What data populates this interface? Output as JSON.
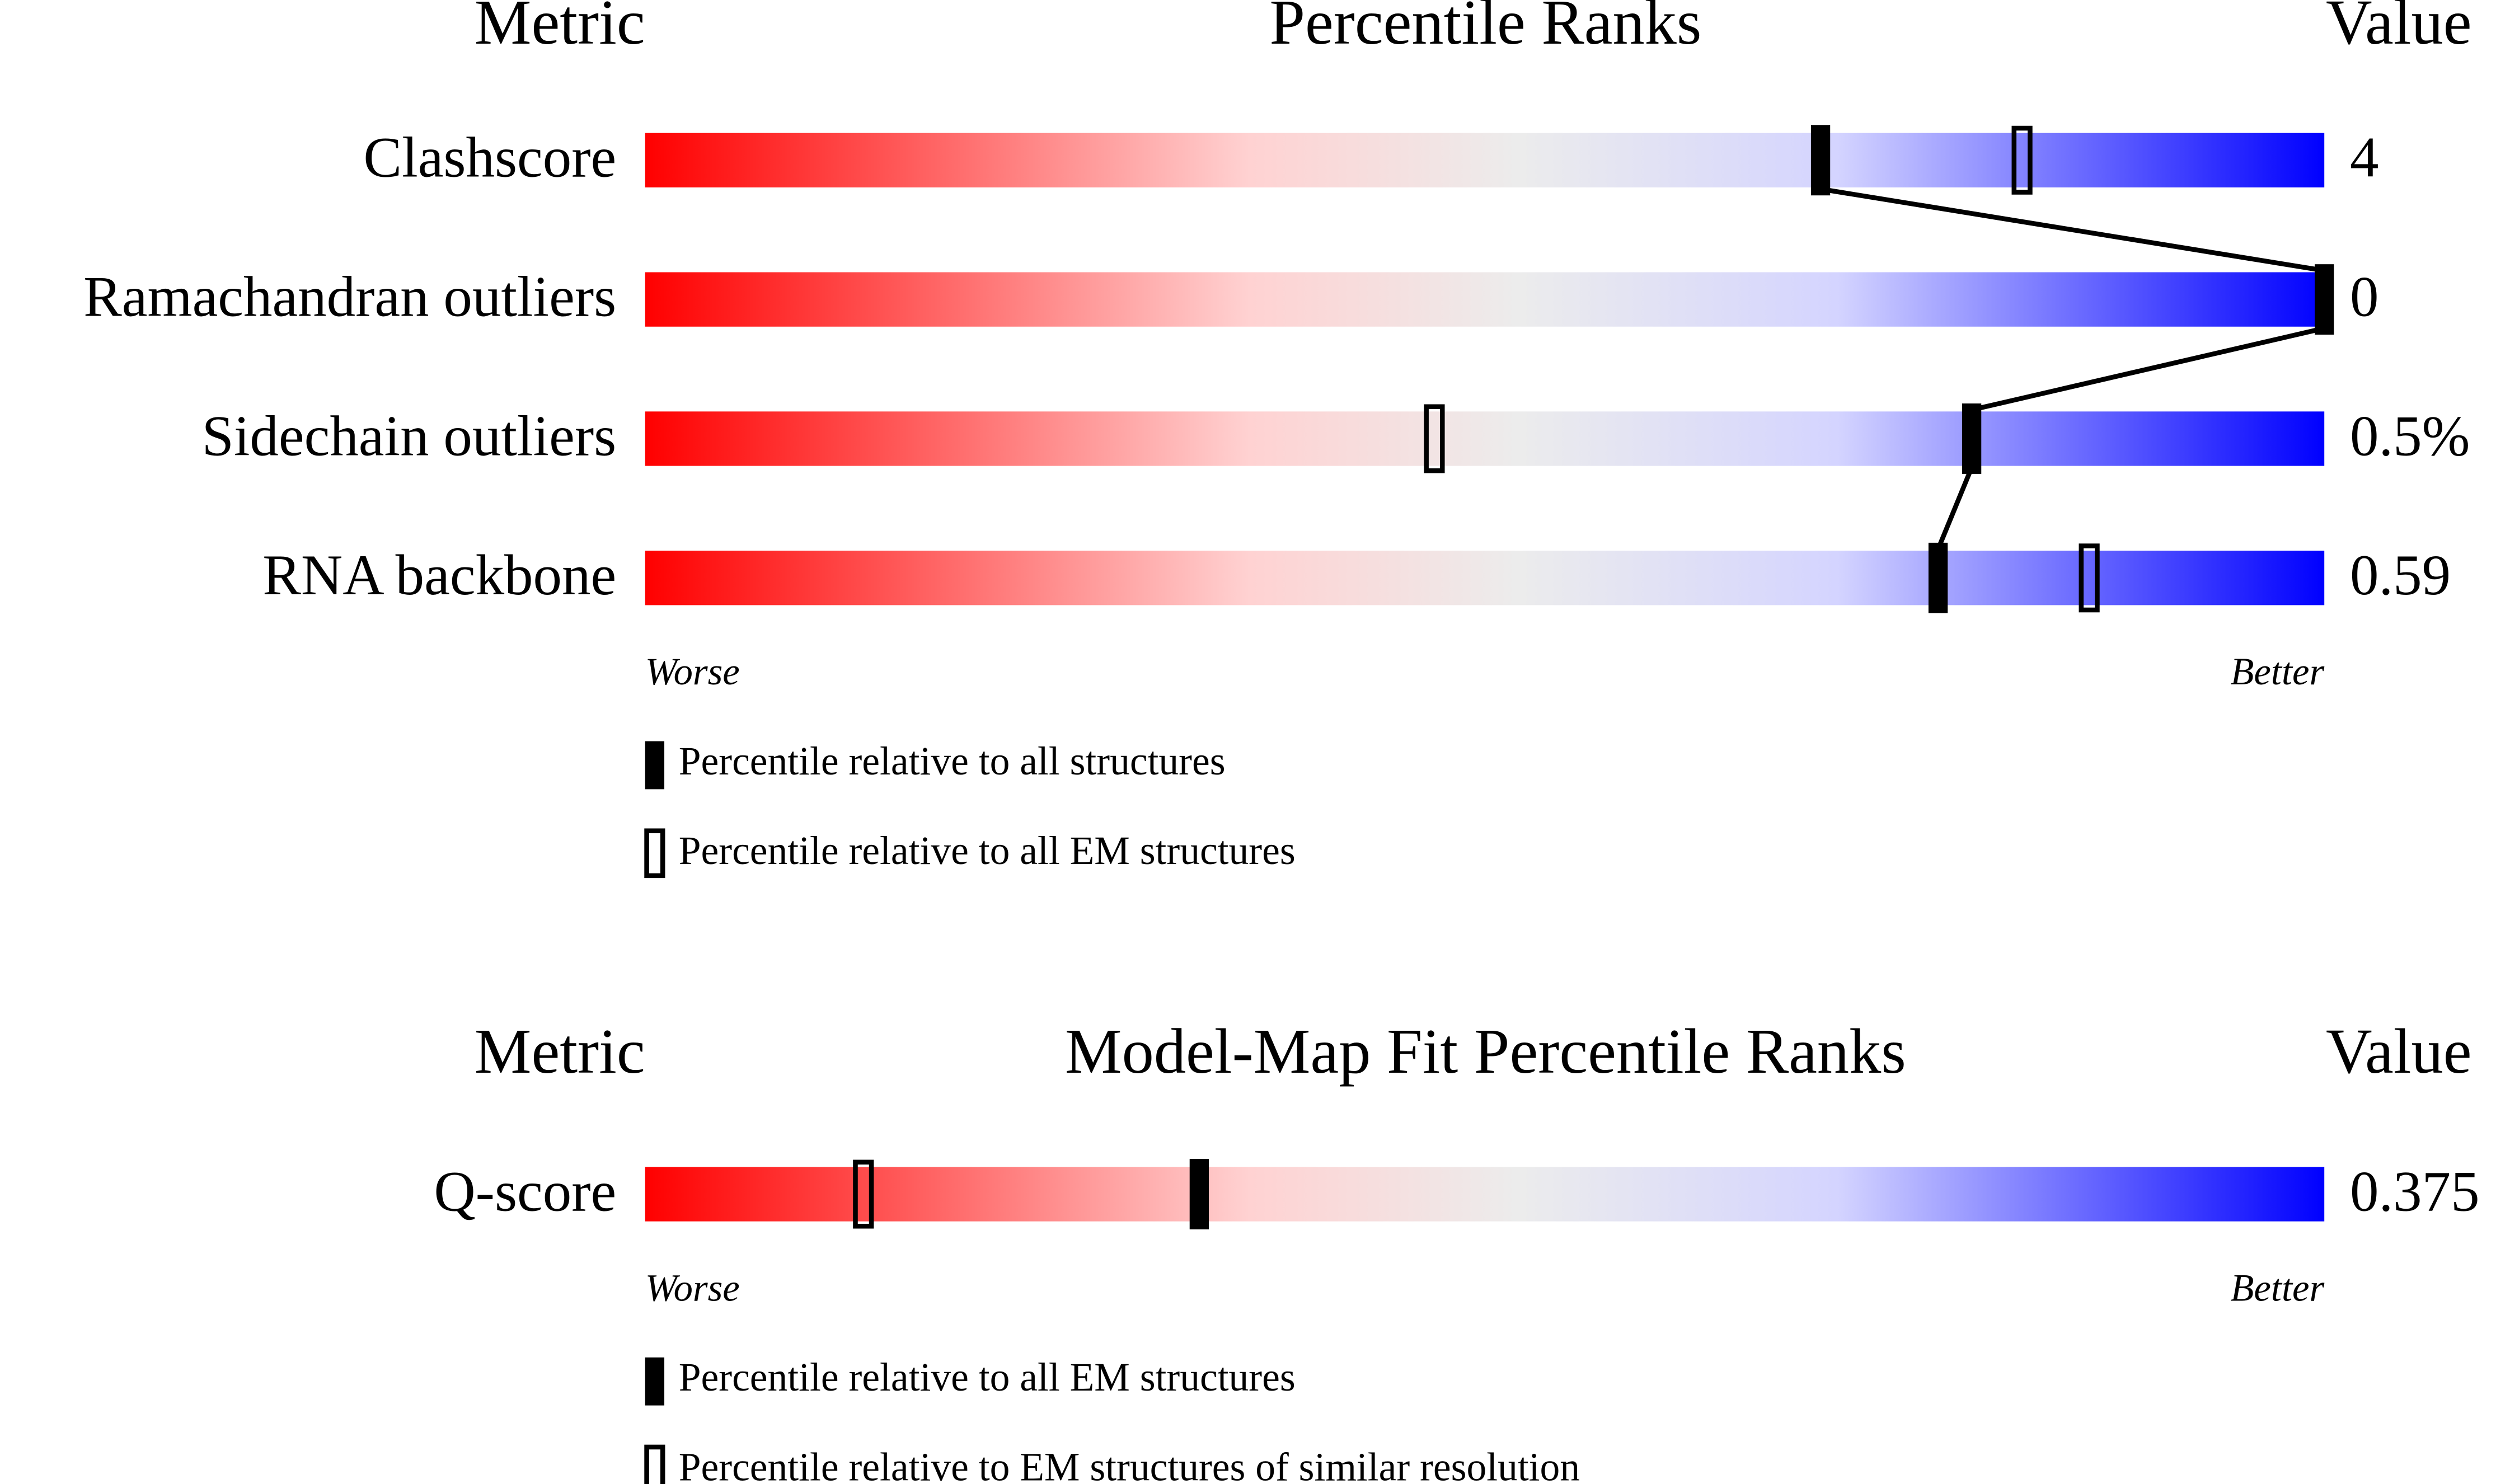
{
  "chart_data": [
    {
      "type": "percentile-slider",
      "headers": {
        "metric": "Metric",
        "title": "Percentile Ranks",
        "value": "Value"
      },
      "metrics": [
        "Clashscore",
        "Ramachandran outliers",
        "Sidechain outliers",
        "RNA backbone"
      ],
      "metric_values": [
        "4",
        "0",
        "0.5%",
        "0.59"
      ],
      "series": [
        {
          "name": "Percentile relative to all structures",
          "style": "filled",
          "color": "#000000",
          "values": [
            70,
            100,
            79,
            77
          ]
        },
        {
          "name": "Percentile relative to all EM structures",
          "style": "open",
          "color": "#000000",
          "values": [
            82,
            null,
            47,
            86
          ]
        }
      ],
      "xlim": [
        0,
        100
      ],
      "low_label": "Worse",
      "high_label": "Better"
    },
    {
      "type": "percentile-slider",
      "headers": {
        "metric": "Metric",
        "title": "Model-Map Fit Percentile Ranks",
        "value": "Value"
      },
      "metrics": [
        "Q-score"
      ],
      "metric_values": [
        "0.375"
      ],
      "series": [
        {
          "name": "Percentile relative to all EM structures",
          "style": "filled",
          "color": "#000000",
          "values": [
            33
          ]
        },
        {
          "name": "Percentile relative to EM structures of similar resolution",
          "style": "open",
          "color": "#000000",
          "values": [
            13
          ]
        }
      ],
      "xlim": [
        0,
        100
      ],
      "low_label": "Worse",
      "high_label": "Better"
    }
  ]
}
